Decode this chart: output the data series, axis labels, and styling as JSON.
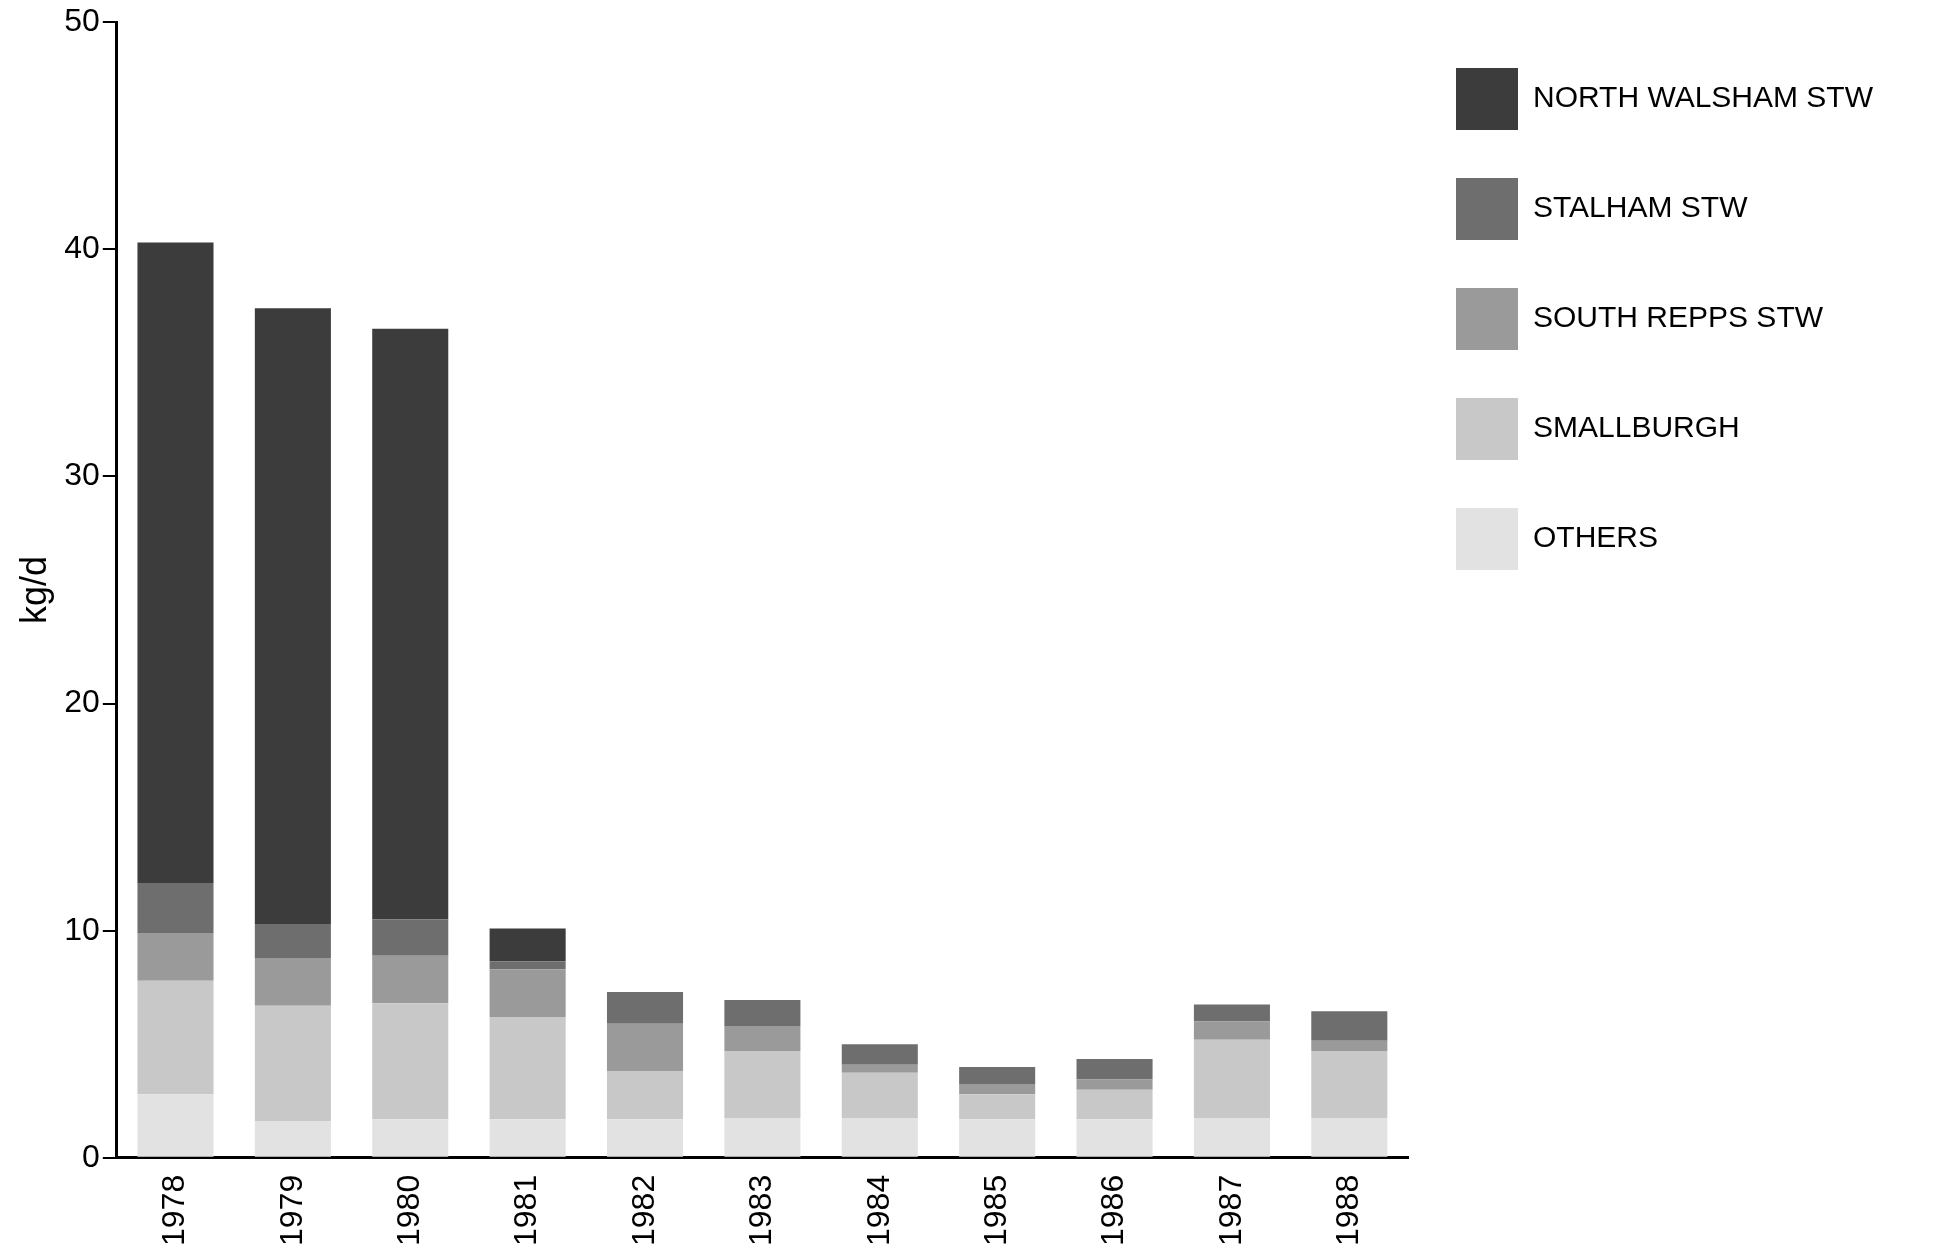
{
  "chart_data": {
    "type": "bar",
    "stacked": true,
    "ylabel": "kg/d",
    "categories": [
      "1978",
      "1979",
      "1980",
      "1981",
      "1982",
      "1983",
      "1984",
      "1985",
      "1986",
      "1987",
      "1988"
    ],
    "series": [
      {
        "name": "OTHERS",
        "color": "#e2e2e2",
        "values": [
          2.8,
          1.6,
          1.7,
          1.7,
          1.7,
          1.75,
          1.75,
          1.7,
          1.7,
          1.75,
          1.75
        ]
      },
      {
        "name": "SMALLBURGH",
        "color": "#c8c8c8",
        "values": [
          5.0,
          5.1,
          5.1,
          4.5,
          2.1,
          2.95,
          2.0,
          1.1,
          1.3,
          3.45,
          2.95
        ]
      },
      {
        "name": "SOUTH REPPS STW",
        "color": "#9a9a9a",
        "values": [
          2.1,
          2.1,
          2.1,
          2.1,
          2.1,
          1.1,
          0.35,
          0.45,
          0.45,
          0.8,
          0.45
        ]
      },
      {
        "name": "STALHAM STW",
        "color": "#6e6e6e",
        "values": [
          2.2,
          1.5,
          1.6,
          0.35,
          1.4,
          1.15,
          0.9,
          0.75,
          0.9,
          0.75,
          1.3
        ]
      },
      {
        "name": "NORTH WALSHAM STW",
        "color": "#3c3c3c",
        "values": [
          28.2,
          27.1,
          26.0,
          1.45,
          null,
          null,
          null,
          null,
          null,
          null,
          null
        ]
      }
    ],
    "ylim": [
      0,
      50
    ],
    "yticks": [
      0,
      10,
      20,
      30,
      40,
      50
    ],
    "grid": false,
    "legend": "top right"
  }
}
